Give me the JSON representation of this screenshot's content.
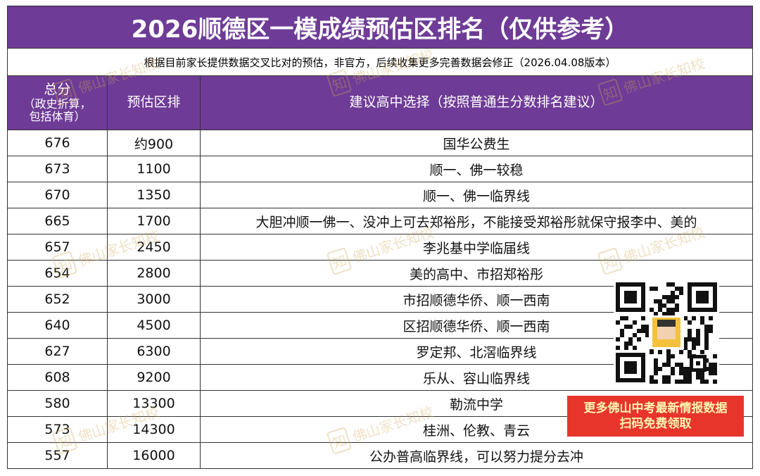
{
  "header": {
    "title": "2026顺德区一模成绩预估区排名（仅供参考）",
    "subtitle": "根据目前家长提供数据交叉比对的预估，非官方，后续收集更多完善数据会修正（2026.04.08版本）"
  },
  "table": {
    "columns": [
      [
        "总分",
        "（政史折算，",
        "包括体育）"
      ],
      [
        "预估区排"
      ],
      [
        "建议高中选择（按照普通生分数排名建议）"
      ]
    ],
    "rows": [
      [
        676,
        "约900",
        "国华公费生"
      ],
      [
        673,
        1100,
        "顺一、佛一较稳"
      ],
      [
        670,
        1350,
        "顺一、佛一临界线"
      ],
      [
        665,
        1700,
        "大胆冲顺一佛一、没冲上可去郑裕彤，不能接受郑裕彤就保守报李中、美的"
      ],
      [
        657,
        2450,
        "李兆基中学临届线"
      ],
      [
        654,
        2800,
        "美的高中、市招郑裕彤"
      ],
      [
        652,
        3000,
        "市招顺德华侨、顺一西南"
      ],
      [
        640,
        4500,
        "区招顺德华侨、顺一西南"
      ],
      [
        627,
        6300,
        "罗定邦、北滘临界线"
      ],
      [
        608,
        9200,
        "乐从、容山临界线"
      ],
      [
        580,
        13300,
        "勒流中学"
      ],
      [
        573,
        14300,
        "桂洲、伦教、青云"
      ],
      [
        557,
        16000,
        "公办普高临界线，可以努力提分去冲"
      ]
    ]
  },
  "watermark": {
    "icon": "知",
    "text": "佛山家长知校"
  },
  "promo": {
    "lines": [
      "更多佛山中考最新情报数据",
      "扫码免费领取"
    ]
  }
}
